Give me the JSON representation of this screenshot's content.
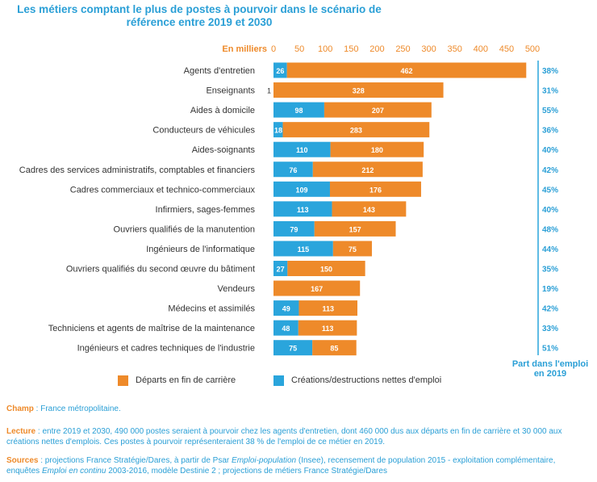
{
  "chart_data": {
    "type": "bar",
    "stacked": true,
    "orientation": "horizontal",
    "title": "Les métiers comptant le plus de postes à pourvoir dans le scénario de référence entre 2019 et 2030",
    "unit_label": "En milliers",
    "xlim": [
      0,
      500
    ],
    "xticks": [
      0,
      50,
      100,
      150,
      200,
      250,
      300,
      350,
      400,
      450,
      500
    ],
    "share_header": "Part dans l'emploi en 2019",
    "categories": [
      "Agents d'entretien",
      "Enseignants",
      "Aides à domicile",
      "Conducteurs de véhicules",
      "Aides-soignants",
      "Cadres des services administratifs, comptables et financiers",
      "Cadres commerciaux et technico-commerciaux",
      "Infirmiers, sages-femmes",
      "Ouvriers qualifiés de la manutention",
      "Ingénieurs de l'informatique",
      "Ouvriers qualifiés du second œuvre du bâtiment",
      "Vendeurs",
      "Médecins et assimilés",
      "Techniciens et agents de maîtrise de la maintenance",
      "Ingénieurs et cadres techniques de l'industrie"
    ],
    "series": [
      {
        "name": "Créations/destructions nettes d'emploi",
        "color": "#2aa5dc",
        "values": [
          26,
          1,
          98,
          18,
          110,
          76,
          109,
          113,
          79,
          115,
          27,
          0,
          49,
          48,
          75
        ],
        "labels": [
          "26",
          "1",
          "98",
          "18",
          "110",
          "76",
          "109",
          "113",
          "79",
          "115",
          "27",
          "",
          "49",
          "48",
          "75"
        ]
      },
      {
        "name": "Départs en fin de carrière",
        "color": "#ee8a2a",
        "values": [
          462,
          328,
          207,
          283,
          180,
          212,
          176,
          143,
          157,
          75,
          150,
          167,
          113,
          113,
          85
        ],
        "labels": [
          "462",
          "328",
          "207",
          "283",
          "180",
          "212",
          "176",
          "143",
          "157",
          "75",
          "150",
          "167",
          "113",
          "113",
          "85"
        ]
      }
    ],
    "shares": [
      "38%",
      "31%",
      "55%",
      "36%",
      "40%",
      "42%",
      "45%",
      "40%",
      "48%",
      "44%",
      "35%",
      "19%",
      "42%",
      "33%",
      "51%"
    ],
    "legend": [
      {
        "label": "Départs en fin de carrière",
        "color": "#ee8a2a"
      },
      {
        "label": "Créations/destructions nettes d'emploi",
        "color": "#2aa5dc"
      }
    ],
    "grid": false
  },
  "notes": {
    "champ_label": "Champ",
    "champ_text": " : France métropolitaine.",
    "lecture_label": "Lecture",
    "lecture_text": " : entre 2019 et 2030, 490 000 postes seraient à pourvoir chez les agents d'entretien, dont 460 000 dus aux départs en fin de carrière et 30 000 aux créations nettes d'emplois. Ces postes à pourvoir représenteraient 38 % de l'emploi de ce métier en 2019.",
    "sources_label": "Sources",
    "sources_t1": " : projections France Stratégie/Dares, à partir de Psar ",
    "sources_em1": "Emploi-population",
    "sources_t2": " (Insee), recensement de population 2015 - exploitation complémentaire, enquêtes ",
    "sources_em2": "Emploi en continu",
    "sources_t3": " 2003-2016, modèle Destinie 2 ; projections de métiers France Stratégie/Dares"
  }
}
